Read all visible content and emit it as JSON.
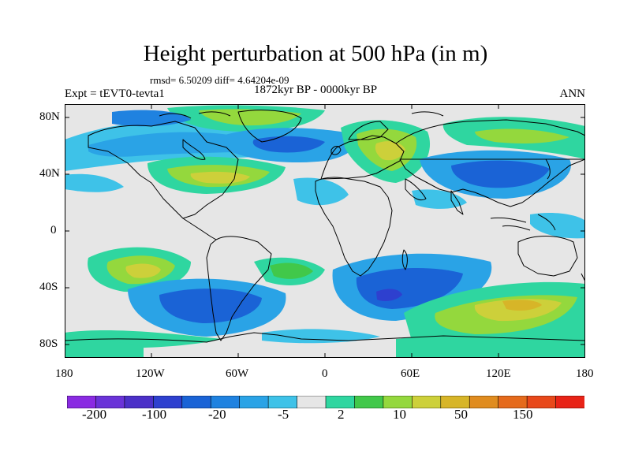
{
  "header": {
    "title": "Height perturbation at 500 hPa (in m)",
    "stats": "rmsd= 6.50209 diff= 4.64204e-09",
    "period": "1872kyr BP - 0000kyr BP",
    "experiment": "Expt = tEVT0-tevta1",
    "season": "ANN"
  },
  "map": {
    "lat_labels": [
      "80N",
      "40N",
      "0",
      "40S",
      "80S"
    ],
    "lon_labels": [
      "180",
      "120W",
      "60W",
      "0",
      "60E",
      "120E",
      "180"
    ],
    "background_color": "#e6e6e6",
    "coastline_color": "#000000"
  },
  "colorbar": {
    "colors": [
      "#8a2be2",
      "#6a33d8",
      "#4b30c8",
      "#2e40cf",
      "#1a63d6",
      "#1f82e0",
      "#2aa3e6",
      "#3ec2e8",
      "#e6e6e6",
      "#2fd6a0",
      "#41c84a",
      "#94d83d",
      "#cdd03a",
      "#d7b528",
      "#e08c1f",
      "#e56a1c",
      "#e8481a",
      "#e82317"
    ],
    "tick_labels": [
      "-200",
      "-100",
      "-20",
      "-5",
      "2",
      "10",
      "50",
      "150"
    ]
  }
}
